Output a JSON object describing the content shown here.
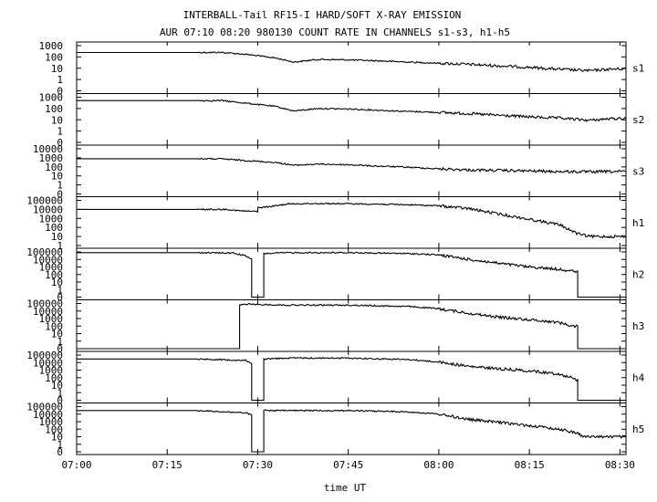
{
  "chart_data": {
    "type": "line",
    "title": "INTERBALL-Tail RF15-I HARD/SOFT X-RAY EMISSION",
    "subtitle": "AUR 07:10 08:20 980130  COUNT RATE IN CHANNELS s1-s3, h1-h5",
    "xlabel": "time UT",
    "x_ticks": [
      "07:00",
      "07:15",
      "07:30",
      "07:45",
      "08:00",
      "08:15",
      "08:30"
    ],
    "xlim": [
      "07:00",
      "08:31"
    ],
    "yscale": "log",
    "grid": false,
    "panels": [
      {
        "name": "s1",
        "y_ticks": [
          "1000",
          "100",
          "10",
          "1",
          "0"
        ],
        "series": [
          {
            "x": [
              "07:00",
              "07:20",
              "07:24",
              "07:28",
              "07:33",
              "07:36",
              "07:40",
              "07:45",
              "07:50",
              "07:55",
              "08:00",
              "08:05",
              "08:10",
              "08:15",
              "08:20",
              "08:25",
              "08:28",
              "08:31"
            ],
            "y": [
              250,
              250,
              250,
              170,
              80,
              35,
              60,
              55,
              45,
              35,
              28,
              22,
              16,
              12,
              8,
              6,
              8,
              9
            ]
          }
        ]
      },
      {
        "name": "s2",
        "y_ticks": [
          "1000",
          "100",
          "10",
          "1",
          "0"
        ],
        "series": [
          {
            "x": [
              "07:00",
              "07:20",
              "07:24",
              "07:28",
              "07:33",
              "07:36",
              "07:40",
              "07:45",
              "07:50",
              "07:55",
              "08:00",
              "08:05",
              "08:10",
              "08:15",
              "08:20",
              "08:25",
              "08:28",
              "08:31"
            ],
            "y": [
              500,
              500,
              500,
              300,
              150,
              60,
              100,
              90,
              70,
              55,
              45,
              35,
              25,
              18,
              14,
              9,
              12,
              14
            ]
          }
        ]
      },
      {
        "name": "s3",
        "y_ticks": [
          "10000",
          "1000",
          "100",
          "10",
          "1",
          "0"
        ],
        "series": [
          {
            "x": [
              "07:00",
              "07:20",
              "07:24",
              "07:28",
              "07:33",
              "07:36",
              "07:40",
              "07:45",
              "07:50",
              "07:55",
              "08:00",
              "08:05",
              "08:10",
              "08:15",
              "08:20",
              "08:25",
              "08:28",
              "08:31"
            ],
            "y": [
              800,
              800,
              750,
              500,
              300,
              150,
              200,
              170,
              120,
              90,
              60,
              45,
              40,
              35,
              30,
              28,
              30,
              30
            ]
          }
        ]
      },
      {
        "name": "h1",
        "y_ticks": [
          "100000",
          "10000",
          "1000",
          "100",
          "10",
          "1"
        ],
        "series": [
          {
            "x": [
              "07:00",
              "07:25",
              "07:27",
              "07:29",
              "07:30",
              "07:30",
              "07:32",
              "07:35",
              "07:40",
              "07:45",
              "07:50",
              "07:55",
              "08:00",
              "08:05",
              "08:10",
              "08:15",
              "08:20",
              "08:23",
              "08:25",
              "08:31"
            ],
            "y": [
              10000,
              10000,
              7000,
              6000,
              6000,
              15000,
              20000,
              40000,
              45000,
              42000,
              38000,
              32000,
              25000,
              12000,
              3000,
              800,
              200,
              20,
              10,
              10
            ]
          }
        ]
      },
      {
        "name": "h2",
        "y_ticks": [
          "100000",
          "10000",
          "1000",
          "100",
          "10",
          "1",
          "0"
        ],
        "series": [
          {
            "x": [
              "07:00",
              "07:20",
              "07:26",
              "07:28",
              "07:29",
              "07:29",
              "07:31",
              "07:31",
              "07:35",
              "07:45",
              "07:55",
              "08:00",
              "08:05",
              "08:10",
              "08:15",
              "08:20",
              "08:22",
              "08:23",
              "08:23",
              "08:31"
            ],
            "y": [
              80000,
              80000,
              70000,
              30000,
              10000,
              0,
              0,
              60000,
              80000,
              80000,
              60000,
              40000,
              10000,
              3000,
              1000,
              500,
              300,
              200,
              0,
              0
            ]
          }
        ]
      },
      {
        "name": "h3",
        "y_ticks": [
          "100000",
          "10000",
          "1000",
          "100",
          "10",
          "1",
          "0"
        ],
        "series": [
          {
            "x": [
              "07:00",
              "07:27",
              "07:27",
              "07:28",
              "07:35",
              "07:45",
              "07:55",
              "08:00",
              "08:05",
              "08:10",
              "08:15",
              "08:20",
              "08:22",
              "08:23",
              "08:23",
              "08:31"
            ],
            "y": [
              0,
              0,
              60000,
              80000,
              60000,
              60000,
              40000,
              20000,
              5000,
              1500,
              700,
              300,
              100,
              100,
              0,
              0
            ]
          }
        ]
      },
      {
        "name": "h4",
        "y_ticks": [
          "100000",
          "10000",
          "1000",
          "100",
          "10",
          "1",
          "0"
        ],
        "series": [
          {
            "x": [
              "07:00",
              "07:20",
              "07:28",
              "07:29",
              "07:29",
              "07:31",
              "07:31",
              "07:35",
              "07:45",
              "07:55",
              "08:00",
              "08:05",
              "08:10",
              "08:15",
              "08:20",
              "08:22",
              "08:23",
              "08:23",
              "08:31"
            ],
            "y": [
              30000,
              30000,
              20000,
              8000,
              0,
              0,
              30000,
              40000,
              40000,
              25000,
              12000,
              3000,
              1500,
              800,
              300,
              100,
              50,
              0,
              0
            ]
          }
        ]
      },
      {
        "name": "h5",
        "y_ticks": [
          "100000",
          "10000",
          "1000",
          "100",
          "10",
          "1",
          "0"
        ],
        "series": [
          {
            "x": [
              "07:00",
              "07:20",
              "07:28",
              "07:29",
              "07:29",
              "07:31",
              "07:31",
              "07:35",
              "07:45",
              "07:55",
              "08:00",
              "08:05",
              "08:10",
              "08:15",
              "08:20",
              "08:23",
              "08:24",
              "08:31"
            ],
            "y": [
              30000,
              30000,
              15000,
              8000,
              0,
              0,
              30000,
              30000,
              30000,
              20000,
              10000,
              2000,
              800,
              300,
              100,
              30,
              10,
              10
            ]
          }
        ]
      }
    ]
  }
}
